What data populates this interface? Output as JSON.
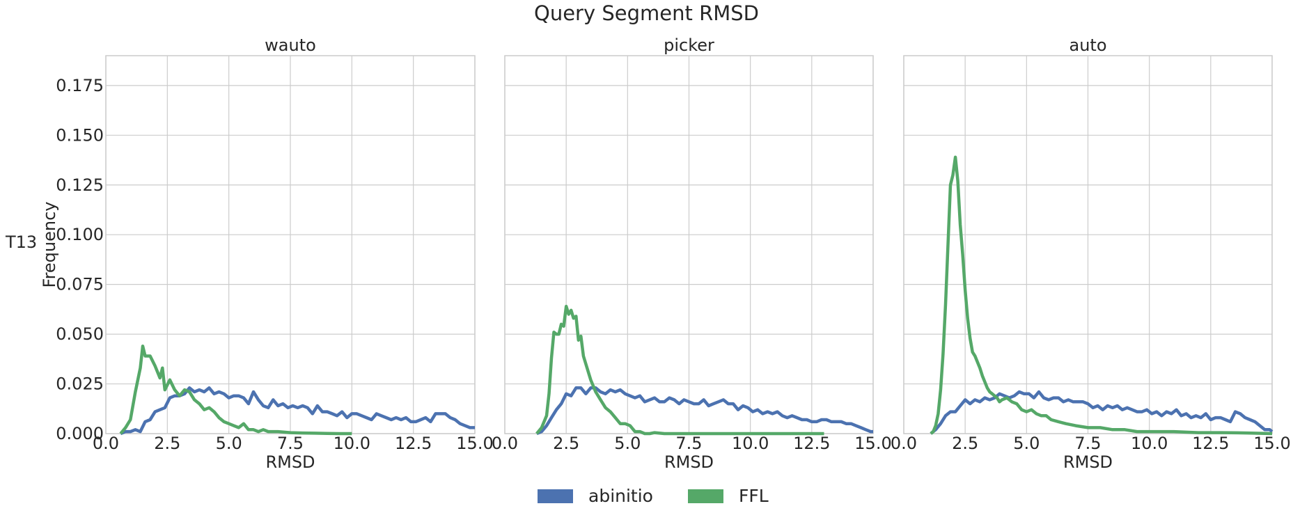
{
  "figure": {
    "title": "Query Segment RMSD",
    "row_label": "T13"
  },
  "legend": [
    {
      "label": "abinitio",
      "color": "#4c72b0"
    },
    {
      "label": "FFL",
      "color": "#55a868"
    }
  ],
  "chart_data": [
    {
      "type": "line",
      "title": "wauto",
      "xlabel": "RMSD",
      "ylabel": "Frequency",
      "xlim": [
        0,
        15
      ],
      "ylim": [
        0,
        0.19
      ],
      "xticks": [
        "0.0",
        "2.5",
        "5.0",
        "7.5",
        "10.0",
        "12.5",
        "15.0"
      ],
      "yticks": [
        "0.000",
        "0.025",
        "0.050",
        "0.075",
        "0.100",
        "0.125",
        "0.150",
        "0.175"
      ],
      "grid": true,
      "series": [
        {
          "name": "abinitio",
          "color": "#4c72b0",
          "x": [
            0.6,
            0.8,
            1.0,
            1.2,
            1.4,
            1.6,
            1.8,
            2.0,
            2.2,
            2.4,
            2.6,
            2.8,
            3.0,
            3.2,
            3.4,
            3.6,
            3.8,
            4.0,
            4.2,
            4.4,
            4.6,
            4.8,
            5.0,
            5.2,
            5.4,
            5.6,
            5.8,
            6.0,
            6.2,
            6.4,
            6.6,
            6.8,
            7.0,
            7.2,
            7.4,
            7.6,
            7.8,
            8.0,
            8.2,
            8.4,
            8.6,
            8.8,
            9.0,
            9.2,
            9.4,
            9.6,
            9.8,
            10.0,
            10.2,
            10.4,
            10.6,
            10.8,
            11.0,
            11.2,
            11.4,
            11.6,
            11.8,
            12.0,
            12.2,
            12.4,
            12.6,
            12.8,
            13.0,
            13.2,
            13.4,
            13.6,
            13.8,
            14.0,
            14.2,
            14.4,
            14.6,
            14.8,
            15.0
          ],
          "y": [
            0.0,
            0.001,
            0.001,
            0.002,
            0.001,
            0.006,
            0.007,
            0.011,
            0.012,
            0.013,
            0.018,
            0.019,
            0.019,
            0.02,
            0.023,
            0.021,
            0.022,
            0.021,
            0.023,
            0.02,
            0.021,
            0.02,
            0.018,
            0.019,
            0.019,
            0.018,
            0.015,
            0.021,
            0.017,
            0.014,
            0.013,
            0.017,
            0.014,
            0.015,
            0.013,
            0.014,
            0.013,
            0.014,
            0.013,
            0.01,
            0.014,
            0.011,
            0.011,
            0.01,
            0.009,
            0.011,
            0.008,
            0.01,
            0.01,
            0.009,
            0.008,
            0.007,
            0.01,
            0.009,
            0.008,
            0.007,
            0.008,
            0.007,
            0.008,
            0.006,
            0.006,
            0.007,
            0.008,
            0.006,
            0.01,
            0.01,
            0.01,
            0.008,
            0.007,
            0.005,
            0.004,
            0.003,
            0.003
          ]
        },
        {
          "name": "FFL",
          "color": "#55a868",
          "x": [
            0.6,
            0.8,
            1.0,
            1.2,
            1.4,
            1.5,
            1.6,
            1.8,
            2.0,
            2.2,
            2.3,
            2.4,
            2.6,
            2.8,
            3.0,
            3.2,
            3.4,
            3.6,
            3.8,
            4.0,
            4.2,
            4.4,
            4.6,
            4.8,
            5.0,
            5.2,
            5.4,
            5.6,
            5.8,
            6.0,
            6.2,
            6.4,
            6.6,
            6.8,
            7.0,
            7.5,
            8.0,
            8.5,
            9.0,
            9.5,
            10.0
          ],
          "y": [
            0.0,
            0.003,
            0.007,
            0.021,
            0.033,
            0.044,
            0.039,
            0.039,
            0.034,
            0.028,
            0.033,
            0.022,
            0.027,
            0.022,
            0.019,
            0.022,
            0.021,
            0.017,
            0.015,
            0.012,
            0.013,
            0.011,
            0.008,
            0.006,
            0.005,
            0.004,
            0.003,
            0.005,
            0.002,
            0.002,
            0.001,
            0.002,
            0.001,
            0.001,
            0.001,
            0.0005,
            0.0003,
            0.0002,
            0.0001,
            0.0,
            0.0
          ]
        }
      ]
    },
    {
      "type": "line",
      "title": "picker",
      "xlabel": "RMSD",
      "ylabel": "",
      "xlim": [
        0,
        15
      ],
      "ylim": [
        0,
        0.19
      ],
      "xticks": [
        "0.0",
        "2.5",
        "5.0",
        "7.5",
        "10.0",
        "12.5",
        "15.0"
      ],
      "yticks": [],
      "grid": true,
      "series": [
        {
          "name": "abinitio",
          "color": "#4c72b0",
          "x": [
            1.3,
            1.5,
            1.7,
            1.9,
            2.1,
            2.3,
            2.5,
            2.7,
            2.9,
            3.1,
            3.3,
            3.5,
            3.7,
            3.9,
            4.1,
            4.3,
            4.5,
            4.7,
            4.9,
            5.1,
            5.3,
            5.5,
            5.7,
            5.9,
            6.1,
            6.3,
            6.5,
            6.7,
            6.9,
            7.1,
            7.3,
            7.5,
            7.7,
            7.9,
            8.1,
            8.3,
            8.5,
            8.7,
            8.9,
            9.1,
            9.3,
            9.5,
            9.7,
            9.9,
            10.1,
            10.3,
            10.5,
            10.7,
            10.9,
            11.1,
            11.3,
            11.5,
            11.7,
            11.9,
            12.1,
            12.3,
            12.5,
            12.7,
            12.9,
            13.1,
            13.3,
            13.5,
            13.7,
            13.9,
            14.1,
            14.3,
            14.5,
            14.7,
            14.9,
            15.0
          ],
          "y": [
            0.0,
            0.001,
            0.004,
            0.008,
            0.012,
            0.015,
            0.02,
            0.019,
            0.023,
            0.023,
            0.02,
            0.023,
            0.023,
            0.021,
            0.02,
            0.022,
            0.021,
            0.022,
            0.02,
            0.019,
            0.018,
            0.019,
            0.016,
            0.017,
            0.018,
            0.016,
            0.016,
            0.018,
            0.017,
            0.015,
            0.017,
            0.016,
            0.015,
            0.015,
            0.017,
            0.014,
            0.015,
            0.016,
            0.017,
            0.015,
            0.015,
            0.012,
            0.014,
            0.013,
            0.011,
            0.012,
            0.01,
            0.011,
            0.01,
            0.011,
            0.009,
            0.008,
            0.009,
            0.008,
            0.007,
            0.007,
            0.006,
            0.006,
            0.007,
            0.007,
            0.006,
            0.006,
            0.006,
            0.005,
            0.005,
            0.004,
            0.003,
            0.002,
            0.001,
            0.001
          ]
        },
        {
          "name": "FFL",
          "color": "#55a868",
          "x": [
            1.3,
            1.5,
            1.7,
            1.8,
            1.9,
            2.0,
            2.1,
            2.2,
            2.3,
            2.4,
            2.5,
            2.6,
            2.7,
            2.8,
            2.9,
            3.0,
            3.1,
            3.2,
            3.3,
            3.5,
            3.7,
            3.9,
            4.1,
            4.3,
            4.5,
            4.7,
            4.9,
            5.1,
            5.3,
            5.5,
            5.7,
            5.9,
            6.1,
            6.5,
            7.0,
            7.5,
            8.0,
            9.0,
            10.0,
            11.0,
            12.0,
            13.0
          ],
          "y": [
            0.0,
            0.003,
            0.009,
            0.02,
            0.038,
            0.051,
            0.05,
            0.05,
            0.055,
            0.054,
            0.064,
            0.06,
            0.062,
            0.058,
            0.059,
            0.047,
            0.049,
            0.039,
            0.035,
            0.027,
            0.021,
            0.017,
            0.013,
            0.011,
            0.008,
            0.005,
            0.005,
            0.004,
            0.001,
            0.001,
            0.0,
            0.0,
            0.0005,
            0.0,
            0.0,
            0.0,
            0.0,
            0.0,
            0.0,
            0.0,
            0.0,
            0.0
          ]
        }
      ]
    },
    {
      "type": "line",
      "title": "auto",
      "xlabel": "RMSD",
      "ylabel": "",
      "xlim": [
        0,
        15
      ],
      "ylim": [
        0,
        0.19
      ],
      "xticks": [
        "0.0",
        "2.5",
        "5.0",
        "7.5",
        "10.0",
        "12.5",
        "15.0"
      ],
      "yticks": [],
      "grid": true,
      "series": [
        {
          "name": "abinitio",
          "color": "#4c72b0",
          "x": [
            1.1,
            1.3,
            1.5,
            1.7,
            1.9,
            2.1,
            2.3,
            2.5,
            2.7,
            2.9,
            3.1,
            3.3,
            3.5,
            3.7,
            3.9,
            4.1,
            4.3,
            4.5,
            4.7,
            4.9,
            5.1,
            5.3,
            5.5,
            5.7,
            5.9,
            6.1,
            6.3,
            6.5,
            6.7,
            6.9,
            7.1,
            7.3,
            7.5,
            7.7,
            7.9,
            8.1,
            8.3,
            8.5,
            8.7,
            8.9,
            9.1,
            9.3,
            9.5,
            9.7,
            9.9,
            10.1,
            10.3,
            10.5,
            10.7,
            10.9,
            11.1,
            11.3,
            11.5,
            11.7,
            11.9,
            12.1,
            12.3,
            12.5,
            12.7,
            12.9,
            13.1,
            13.3,
            13.5,
            13.7,
            13.9,
            14.1,
            14.3,
            14.5,
            14.7,
            14.9,
            15.0
          ],
          "y": [
            0.0,
            0.002,
            0.005,
            0.009,
            0.011,
            0.011,
            0.014,
            0.017,
            0.015,
            0.017,
            0.016,
            0.018,
            0.017,
            0.018,
            0.02,
            0.019,
            0.018,
            0.019,
            0.021,
            0.02,
            0.02,
            0.018,
            0.021,
            0.018,
            0.017,
            0.018,
            0.018,
            0.016,
            0.017,
            0.016,
            0.016,
            0.016,
            0.015,
            0.013,
            0.014,
            0.012,
            0.014,
            0.013,
            0.014,
            0.012,
            0.013,
            0.012,
            0.011,
            0.011,
            0.012,
            0.01,
            0.011,
            0.009,
            0.011,
            0.01,
            0.012,
            0.009,
            0.01,
            0.008,
            0.009,
            0.008,
            0.01,
            0.007,
            0.008,
            0.008,
            0.007,
            0.006,
            0.011,
            0.01,
            0.008,
            0.007,
            0.006,
            0.004,
            0.002,
            0.002,
            0.001
          ]
        },
        {
          "name": "FFL",
          "color": "#55a868",
          "x": [
            1.1,
            1.2,
            1.3,
            1.4,
            1.5,
            1.6,
            1.7,
            1.8,
            1.9,
            2.0,
            2.1,
            2.2,
            2.3,
            2.4,
            2.5,
            2.6,
            2.7,
            2.8,
            2.9,
            3.0,
            3.1,
            3.2,
            3.3,
            3.4,
            3.5,
            3.6,
            3.7,
            3.8,
            3.9,
            4.0,
            4.2,
            4.4,
            4.6,
            4.8,
            5.0,
            5.2,
            5.4,
            5.6,
            5.8,
            6.0,
            6.3,
            6.6,
            7.0,
            7.5,
            8.0,
            8.5,
            9.0,
            9.5,
            10.0,
            11.0,
            12.0,
            13.0,
            14.0,
            15.0
          ],
          "y": [
            0.0,
            0.001,
            0.004,
            0.01,
            0.022,
            0.04,
            0.065,
            0.095,
            0.125,
            0.13,
            0.139,
            0.127,
            0.105,
            0.09,
            0.072,
            0.058,
            0.048,
            0.041,
            0.039,
            0.036,
            0.033,
            0.029,
            0.026,
            0.023,
            0.021,
            0.02,
            0.019,
            0.018,
            0.016,
            0.017,
            0.018,
            0.016,
            0.015,
            0.012,
            0.011,
            0.012,
            0.01,
            0.009,
            0.009,
            0.007,
            0.006,
            0.005,
            0.004,
            0.003,
            0.003,
            0.002,
            0.002,
            0.001,
            0.001,
            0.001,
            0.0005,
            0.0005,
            0.0003,
            0.0
          ]
        }
      ]
    }
  ]
}
